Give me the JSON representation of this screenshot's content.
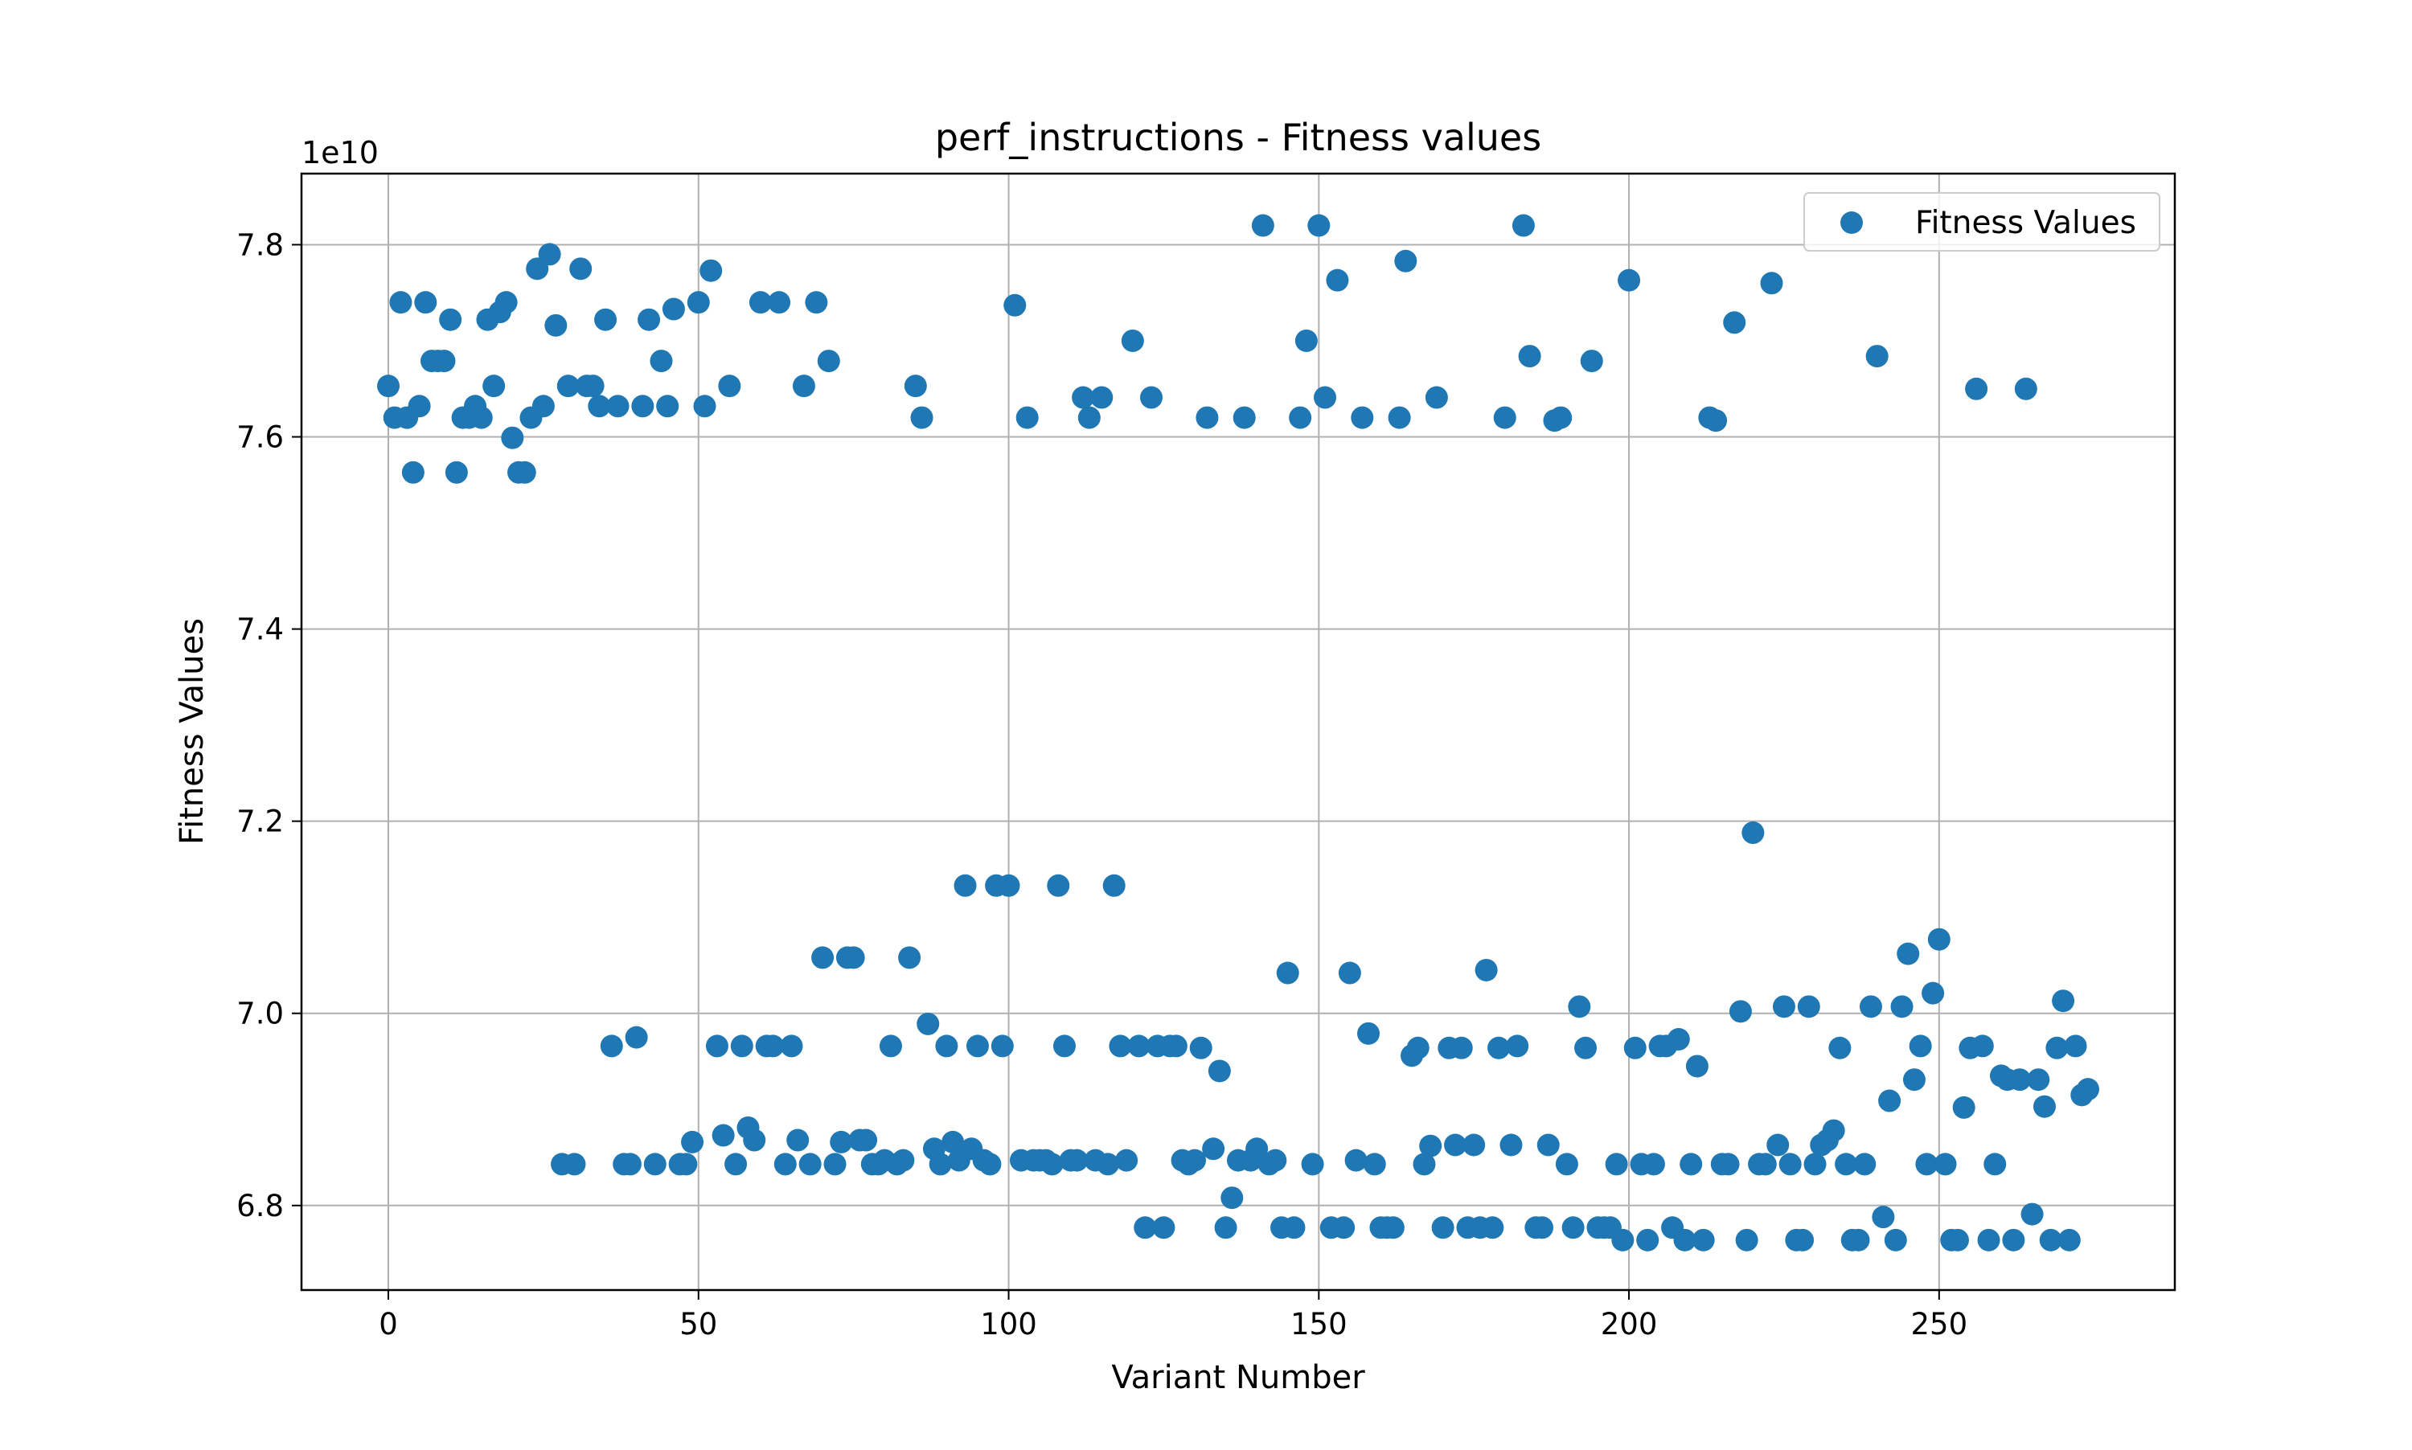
{
  "chart_data": {
    "type": "scatter",
    "title": "perf_instructions - Fitness values",
    "xlabel": "Variant Number",
    "ylabel": "Fitness Values",
    "y_multiplier_label": "1e10",
    "y_scale": 10000000000,
    "xlim": [
      -14,
      288
    ],
    "ylim": [
      6.712,
      7.874
    ],
    "xticks": [
      0,
      50,
      100,
      150,
      200,
      250
    ],
    "yticks": [
      6.8,
      7.0,
      7.2,
      7.4,
      7.6,
      7.8
    ],
    "ytick_labels": [
      "6.8",
      "7.0",
      "7.2",
      "7.4",
      "7.6",
      "7.8"
    ],
    "grid": true,
    "legend": {
      "placement": "top-right"
    },
    "marker_color": "#1f77b4",
    "series": [
      {
        "name": "Fitness Values",
        "points": [
          [
            0,
            7.653
          ],
          [
            1,
            7.62
          ],
          [
            2,
            7.74
          ],
          [
            3,
            7.62
          ],
          [
            4,
            7.563
          ],
          [
            5,
            7.632
          ],
          [
            6,
            7.74
          ],
          [
            7,
            7.679
          ],
          [
            8,
            7.679
          ],
          [
            9,
            7.679
          ],
          [
            10,
            7.722
          ],
          [
            11,
            7.563
          ],
          [
            12,
            7.62
          ],
          [
            13,
            7.62
          ],
          [
            14,
            7.632
          ],
          [
            15,
            7.62
          ],
          [
            16,
            7.722
          ],
          [
            17,
            7.653
          ],
          [
            18,
            7.73
          ],
          [
            19,
            7.74
          ],
          [
            20,
            7.599
          ],
          [
            21,
            7.563
          ],
          [
            22,
            7.563
          ],
          [
            23,
            7.62
          ],
          [
            24,
            7.775
          ],
          [
            25,
            7.632
          ],
          [
            26,
            7.79
          ],
          [
            27,
            7.716
          ],
          [
            28,
            6.843
          ],
          [
            29,
            7.653
          ],
          [
            30,
            6.843
          ],
          [
            31,
            7.775
          ],
          [
            32,
            7.653
          ],
          [
            33,
            7.653
          ],
          [
            34,
            7.632
          ],
          [
            35,
            7.722
          ],
          [
            36,
            6.966
          ],
          [
            37,
            7.632
          ],
          [
            38,
            6.843
          ],
          [
            39,
            6.843
          ],
          [
            40,
            6.975
          ],
          [
            41,
            7.632
          ],
          [
            42,
            7.722
          ],
          [
            43,
            6.843
          ],
          [
            44,
            7.679
          ],
          [
            45,
            7.632
          ],
          [
            46,
            7.733
          ],
          [
            47,
            6.843
          ],
          [
            48,
            6.843
          ],
          [
            49,
            6.866
          ],
          [
            50,
            7.74
          ],
          [
            51,
            7.632
          ],
          [
            52,
            7.773
          ],
          [
            53,
            6.966
          ],
          [
            54,
            6.873
          ],
          [
            55,
            7.653
          ],
          [
            56,
            6.843
          ],
          [
            57,
            6.966
          ],
          [
            58,
            6.881
          ],
          [
            59,
            6.868
          ],
          [
            60,
            7.74
          ],
          [
            61,
            6.966
          ],
          [
            62,
            6.966
          ],
          [
            63,
            7.74
          ],
          [
            64,
            6.843
          ],
          [
            65,
            6.966
          ],
          [
            66,
            6.868
          ],
          [
            67,
            7.653
          ],
          [
            68,
            6.843
          ],
          [
            69,
            7.74
          ],
          [
            70,
            7.058
          ],
          [
            71,
            7.679
          ],
          [
            72,
            6.843
          ],
          [
            73,
            6.866
          ],
          [
            74,
            7.058
          ],
          [
            75,
            7.058
          ],
          [
            76,
            6.868
          ],
          [
            77,
            6.868
          ],
          [
            78,
            6.843
          ],
          [
            79,
            6.843
          ],
          [
            80,
            6.847
          ],
          [
            81,
            6.966
          ],
          [
            82,
            6.843
          ],
          [
            83,
            6.847
          ],
          [
            84,
            7.058
          ],
          [
            85,
            7.653
          ],
          [
            86,
            7.62
          ],
          [
            87,
            6.989
          ],
          [
            88,
            6.859
          ],
          [
            89,
            6.843
          ],
          [
            90,
            6.966
          ],
          [
            91,
            6.866
          ],
          [
            92,
            6.847
          ],
          [
            93,
            7.133
          ],
          [
            94,
            6.859
          ],
          [
            95,
            6.966
          ],
          [
            96,
            6.847
          ],
          [
            97,
            6.843
          ],
          [
            98,
            7.133
          ],
          [
            99,
            6.966
          ],
          [
            100,
            7.133
          ],
          [
            101,
            7.737
          ],
          [
            102,
            6.847
          ],
          [
            103,
            7.62
          ],
          [
            104,
            6.847
          ],
          [
            105,
            6.847
          ],
          [
            106,
            6.847
          ],
          [
            107,
            6.843
          ],
          [
            108,
            7.133
          ],
          [
            109,
            6.966
          ],
          [
            110,
            6.847
          ],
          [
            111,
            6.847
          ],
          [
            112,
            7.641
          ],
          [
            113,
            7.62
          ],
          [
            114,
            6.847
          ],
          [
            115,
            7.641
          ],
          [
            116,
            6.843
          ],
          [
            117,
            7.133
          ],
          [
            118,
            6.966
          ],
          [
            119,
            6.847
          ],
          [
            120,
            7.7
          ],
          [
            121,
            6.966
          ],
          [
            122,
            6.777
          ],
          [
            123,
            7.641
          ],
          [
            124,
            6.966
          ],
          [
            125,
            6.777
          ],
          [
            126,
            6.966
          ],
          [
            127,
            6.966
          ],
          [
            128,
            6.847
          ],
          [
            129,
            6.843
          ],
          [
            130,
            6.847
          ],
          [
            131,
            6.964
          ],
          [
            132,
            7.62
          ],
          [
            133,
            6.859
          ],
          [
            134,
            6.94
          ],
          [
            135,
            6.777
          ],
          [
            136,
            6.808
          ],
          [
            137,
            6.847
          ],
          [
            138,
            7.62
          ],
          [
            139,
            6.847
          ],
          [
            140,
            6.859
          ],
          [
            141,
            7.82
          ],
          [
            142,
            6.843
          ],
          [
            143,
            6.847
          ],
          [
            144,
            6.777
          ],
          [
            145,
            7.042
          ],
          [
            146,
            6.777
          ],
          [
            147,
            7.62
          ],
          [
            148,
            7.7
          ],
          [
            149,
            6.843
          ],
          [
            150,
            7.82
          ],
          [
            151,
            7.641
          ],
          [
            152,
            6.777
          ],
          [
            153,
            7.763
          ],
          [
            154,
            6.777
          ],
          [
            155,
            7.042
          ],
          [
            156,
            6.847
          ],
          [
            157,
            7.62
          ],
          [
            158,
            6.979
          ],
          [
            159,
            6.843
          ],
          [
            160,
            6.777
          ],
          [
            161,
            6.777
          ],
          [
            162,
            6.777
          ],
          [
            163,
            7.62
          ],
          [
            164,
            7.783
          ],
          [
            165,
            6.956
          ],
          [
            166,
            6.964
          ],
          [
            167,
            6.843
          ],
          [
            168,
            6.862
          ],
          [
            169,
            7.641
          ],
          [
            170,
            6.777
          ],
          [
            171,
            6.964
          ],
          [
            172,
            6.863
          ],
          [
            173,
            6.964
          ],
          [
            174,
            6.777
          ],
          [
            175,
            6.863
          ],
          [
            176,
            6.777
          ],
          [
            177,
            7.045
          ],
          [
            178,
            6.777
          ],
          [
            179,
            6.964
          ],
          [
            180,
            7.62
          ],
          [
            181,
            6.863
          ],
          [
            182,
            6.966
          ],
          [
            183,
            7.82
          ],
          [
            184,
            7.684
          ],
          [
            185,
            6.777
          ],
          [
            186,
            6.777
          ],
          [
            187,
            6.863
          ],
          [
            188,
            7.617
          ],
          [
            189,
            7.62
          ],
          [
            190,
            6.843
          ],
          [
            191,
            6.777
          ],
          [
            192,
            7.007
          ],
          [
            193,
            6.964
          ],
          [
            194,
            7.679
          ],
          [
            195,
            6.777
          ],
          [
            196,
            6.777
          ],
          [
            197,
            6.777
          ],
          [
            198,
            6.843
          ],
          [
            199,
            6.764
          ],
          [
            200,
            7.763
          ],
          [
            201,
            6.964
          ],
          [
            202,
            6.843
          ],
          [
            203,
            6.764
          ],
          [
            204,
            6.843
          ],
          [
            205,
            6.966
          ],
          [
            206,
            6.966
          ],
          [
            207,
            6.777
          ],
          [
            208,
            6.973
          ],
          [
            209,
            6.764
          ],
          [
            210,
            6.843
          ],
          [
            211,
            6.945
          ],
          [
            212,
            6.764
          ],
          [
            213,
            7.62
          ],
          [
            214,
            7.617
          ],
          [
            215,
            6.843
          ],
          [
            216,
            6.843
          ],
          [
            217,
            7.719
          ],
          [
            218,
            7.002
          ],
          [
            219,
            6.764
          ],
          [
            220,
            7.188
          ],
          [
            221,
            6.843
          ],
          [
            222,
            6.843
          ],
          [
            223,
            7.76
          ],
          [
            224,
            6.863
          ],
          [
            225,
            7.007
          ],
          [
            226,
            6.843
          ],
          [
            227,
            6.764
          ],
          [
            228,
            6.764
          ],
          [
            229,
            7.007
          ],
          [
            230,
            6.843
          ],
          [
            231,
            6.863
          ],
          [
            232,
            6.868
          ],
          [
            233,
            6.878
          ],
          [
            234,
            6.964
          ],
          [
            235,
            6.843
          ],
          [
            236,
            6.764
          ],
          [
            237,
            6.764
          ],
          [
            238,
            6.843
          ],
          [
            239,
            7.007
          ],
          [
            240,
            7.684
          ],
          [
            241,
            6.788
          ],
          [
            242,
            6.909
          ],
          [
            243,
            6.764
          ],
          [
            244,
            7.007
          ],
          [
            245,
            7.062
          ],
          [
            246,
            6.931
          ],
          [
            247,
            6.966
          ],
          [
            248,
            6.843
          ],
          [
            249,
            7.021
          ],
          [
            250,
            7.077
          ],
          [
            251,
            6.843
          ],
          [
            252,
            6.764
          ],
          [
            253,
            6.764
          ],
          [
            254,
            6.902
          ],
          [
            255,
            6.964
          ],
          [
            256,
            7.65
          ],
          [
            257,
            6.966
          ],
          [
            258,
            6.764
          ],
          [
            259,
            6.843
          ],
          [
            260,
            6.935
          ],
          [
            261,
            6.931
          ],
          [
            262,
            6.764
          ],
          [
            263,
            6.931
          ],
          [
            264,
            7.65
          ],
          [
            265,
            6.791
          ],
          [
            266,
            6.931
          ],
          [
            267,
            6.903
          ],
          [
            268,
            6.764
          ],
          [
            269,
            6.964
          ],
          [
            270,
            7.013
          ],
          [
            271,
            6.764
          ],
          [
            272,
            6.966
          ],
          [
            273,
            6.915
          ],
          [
            274,
            6.921
          ]
        ]
      }
    ]
  }
}
